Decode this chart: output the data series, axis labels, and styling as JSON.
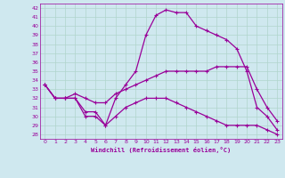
{
  "xlabel": "Windchill (Refroidissement éolien,°C)",
  "background_color": "#cfe8ef",
  "grid_color": "#b0d4cc",
  "line_color": "#990099",
  "xlim": [
    -0.5,
    23.5
  ],
  "ylim": [
    27.5,
    42.5
  ],
  "xticks": [
    0,
    1,
    2,
    3,
    4,
    5,
    6,
    7,
    8,
    9,
    10,
    11,
    12,
    13,
    14,
    15,
    16,
    17,
    18,
    19,
    20,
    21,
    22,
    23
  ],
  "yticks": [
    28,
    29,
    30,
    31,
    32,
    33,
    34,
    35,
    36,
    37,
    38,
    39,
    40,
    41,
    42
  ],
  "line1_x": [
    0,
    1,
    2,
    3,
    4,
    5,
    6,
    7,
    8,
    9,
    10,
    11,
    12,
    13,
    14,
    15,
    16,
    17,
    18,
    19,
    20,
    21,
    22,
    23
  ],
  "line1_y": [
    33.5,
    32.0,
    32.0,
    32.0,
    30.0,
    30.0,
    29.0,
    32.0,
    33.5,
    35.0,
    39.0,
    41.2,
    41.8,
    41.5,
    41.5,
    40.0,
    39.5,
    39.0,
    38.5,
    37.5,
    35.0,
    31.0,
    30.0,
    28.5
  ],
  "line2_x": [
    0,
    1,
    2,
    3,
    4,
    5,
    6,
    7,
    8,
    9,
    10,
    11,
    12,
    13,
    14,
    15,
    16,
    17,
    18,
    19,
    20,
    21,
    22,
    23
  ],
  "line2_y": [
    33.5,
    32.0,
    32.0,
    32.5,
    32.0,
    31.5,
    31.5,
    32.5,
    33.0,
    33.5,
    34.0,
    34.5,
    35.0,
    35.0,
    35.0,
    35.0,
    35.0,
    35.5,
    35.5,
    35.5,
    35.5,
    33.0,
    31.0,
    29.5
  ],
  "line3_x": [
    0,
    1,
    2,
    3,
    4,
    5,
    6,
    7,
    8,
    9,
    10,
    11,
    12,
    13,
    14,
    15,
    16,
    17,
    18,
    19,
    20,
    21,
    22,
    23
  ],
  "line3_y": [
    33.5,
    32.0,
    32.0,
    32.0,
    30.5,
    30.5,
    29.0,
    30.0,
    31.0,
    31.5,
    32.0,
    32.0,
    32.0,
    31.5,
    31.0,
    30.5,
    30.0,
    29.5,
    29.0,
    29.0,
    29.0,
    29.0,
    28.5,
    28.0
  ]
}
